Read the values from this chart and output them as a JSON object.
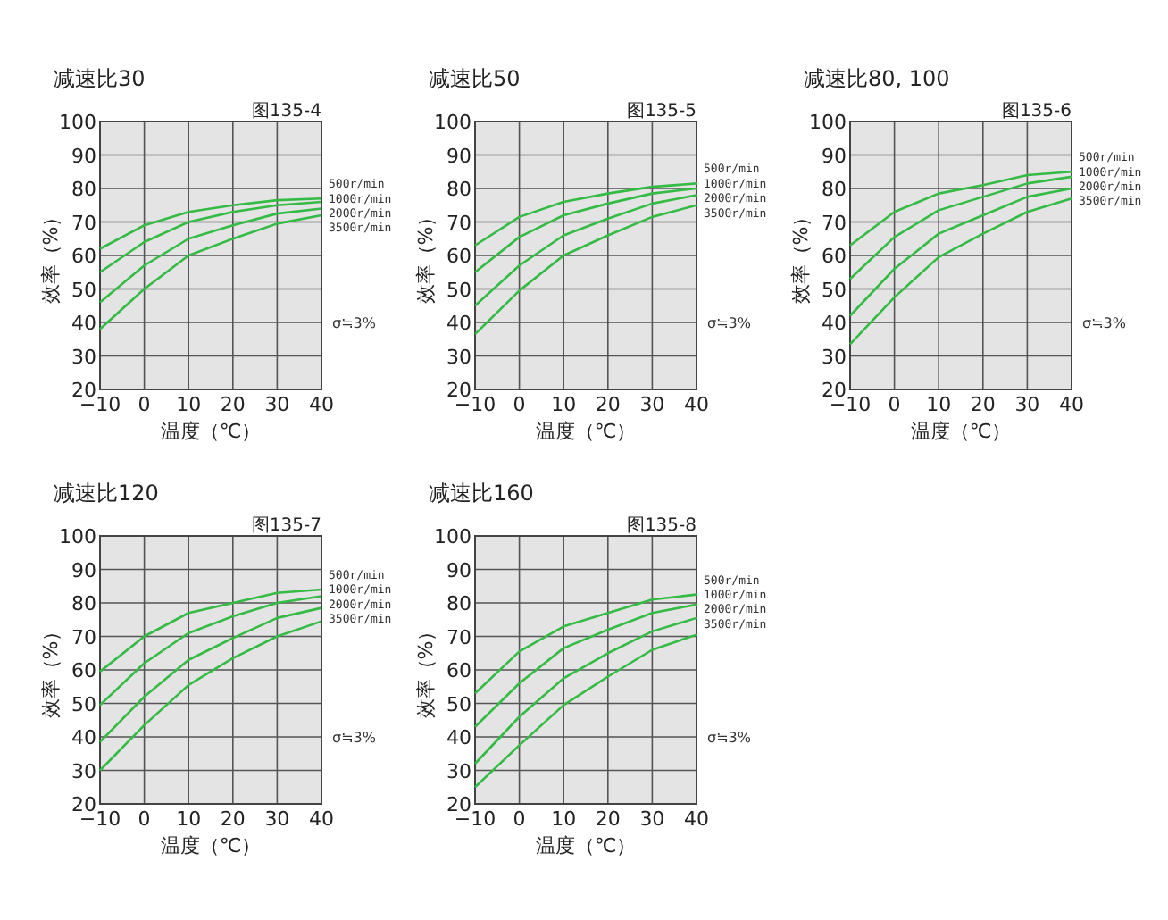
{
  "chart_data": [
    {
      "type": "line",
      "title": "减速比30",
      "xlabel": "温度（℃）",
      "ylabel": "效率（%）",
      "annotations": [
        "图135-4",
        "σ≒3%"
      ],
      "x": [
        -10,
        0,
        10,
        20,
        30,
        40
      ],
      "xlim": [
        -10,
        40
      ],
      "xticks": [
        -10,
        0,
        10,
        20,
        30,
        40
      ],
      "ylim": [
        20,
        100
      ],
      "yticks": [
        20,
        30,
        40,
        50,
        60,
        70,
        80,
        90,
        100
      ],
      "grid": true,
      "legend": false,
      "series": [
        {
          "name": "500r/min",
          "color": "#33bb44",
          "values": [
            62,
            69,
            73,
            75,
            76.5,
            77
          ]
        },
        {
          "name": "1000r/min",
          "color": "#33bb44",
          "values": [
            55,
            64,
            70,
            73,
            75,
            76
          ]
        },
        {
          "name": "2000r/min",
          "color": "#33bb44",
          "values": [
            46,
            57,
            65,
            69,
            72.5,
            74
          ]
        },
        {
          "name": "3500r/min",
          "color": "#33bb44",
          "values": [
            38,
            50,
            60,
            65,
            69.5,
            72
          ]
        }
      ]
    },
    {
      "type": "line",
      "title": "减速比50",
      "xlabel": "温度（℃）",
      "ylabel": "效率（%）",
      "annotations": [
        "图135-5",
        "σ≒3%"
      ],
      "x": [
        -10,
        0,
        10,
        20,
        30,
        40
      ],
      "xlim": [
        -10,
        40
      ],
      "xticks": [
        -10,
        0,
        10,
        20,
        30,
        40
      ],
      "ylim": [
        20,
        100
      ],
      "yticks": [
        20,
        30,
        40,
        50,
        60,
        70,
        80,
        90,
        100
      ],
      "grid": true,
      "legend": false,
      "series": [
        {
          "name": "500r/min",
          "color": "#33bb44",
          "values": [
            63,
            71.5,
            76,
            78.5,
            80.5,
            81.5
          ]
        },
        {
          "name": "1000r/min",
          "color": "#33bb44",
          "values": [
            55,
            65.5,
            72,
            75.5,
            78.5,
            80
          ]
        },
        {
          "name": "2000r/min",
          "color": "#33bb44",
          "values": [
            45,
            57,
            66,
            71,
            75.5,
            78
          ]
        },
        {
          "name": "3500r/min",
          "color": "#33bb44",
          "values": [
            36.5,
            49.5,
            60,
            66,
            71.5,
            75
          ]
        }
      ]
    },
    {
      "type": "line",
      "title": "减速比80, 100",
      "xlabel": "温度（℃）",
      "ylabel": "效率（%）",
      "annotations": [
        "图135-6",
        "σ≒3%"
      ],
      "x": [
        -10,
        0,
        10,
        20,
        30,
        40
      ],
      "xlim": [
        -10,
        40
      ],
      "xticks": [
        -10,
        0,
        10,
        20,
        30,
        40
      ],
      "ylim": [
        20,
        100
      ],
      "yticks": [
        20,
        30,
        40,
        50,
        60,
        70,
        80,
        90,
        100
      ],
      "grid": true,
      "legend": false,
      "series": [
        {
          "name": "500r/min",
          "color": "#33bb44",
          "values": [
            63,
            73,
            78.5,
            81,
            84,
            85
          ]
        },
        {
          "name": "1000r/min",
          "color": "#33bb44",
          "values": [
            53,
            65.5,
            73.5,
            77.5,
            81.5,
            83.5
          ]
        },
        {
          "name": "2000r/min",
          "color": "#33bb44",
          "values": [
            42,
            56,
            66.5,
            72,
            77.5,
            80
          ]
        },
        {
          "name": "3500r/min",
          "color": "#33bb44",
          "values": [
            33.5,
            47.5,
            59.5,
            66.5,
            73,
            77
          ]
        }
      ]
    },
    {
      "type": "line",
      "title": "减速比120",
      "xlabel": "温度（℃）",
      "ylabel": "效率（%）",
      "annotations": [
        "图135-7",
        "σ≒3%"
      ],
      "x": [
        -10,
        0,
        10,
        20,
        30,
        40
      ],
      "xlim": [
        -10,
        40
      ],
      "xticks": [
        -10,
        0,
        10,
        20,
        30,
        40
      ],
      "ylim": [
        20,
        100
      ],
      "yticks": [
        20,
        30,
        40,
        50,
        60,
        70,
        80,
        90,
        100
      ],
      "grid": true,
      "legend": false,
      "series": [
        {
          "name": "500r/min",
          "color": "#33bb44",
          "values": [
            59.5,
            70,
            77,
            80,
            83,
            84
          ]
        },
        {
          "name": "1000r/min",
          "color": "#33bb44",
          "values": [
            49.5,
            62,
            71,
            76,
            80,
            82
          ]
        },
        {
          "name": "2000r/min",
          "color": "#33bb44",
          "values": [
            38.5,
            52,
            63,
            69.5,
            75.5,
            78.5
          ]
        },
        {
          "name": "3500r/min",
          "color": "#33bb44",
          "values": [
            30,
            43.5,
            55.5,
            63.5,
            70,
            74.5
          ]
        }
      ]
    },
    {
      "type": "line",
      "title": "减速比160",
      "xlabel": "温度（℃）",
      "ylabel": "效率（%）",
      "annotations": [
        "图135-8",
        "σ≒3%"
      ],
      "x": [
        -10,
        0,
        10,
        20,
        30,
        40
      ],
      "xlim": [
        -10,
        40
      ],
      "xticks": [
        -10,
        0,
        10,
        20,
        30,
        40
      ],
      "ylim": [
        20,
        100
      ],
      "yticks": [
        20,
        30,
        40,
        50,
        60,
        70,
        80,
        90,
        100
      ],
      "grid": true,
      "legend": false,
      "series": [
        {
          "name": "500r/min",
          "color": "#33bb44",
          "values": [
            53,
            65.5,
            73,
            77,
            81,
            82.5
          ]
        },
        {
          "name": "1000r/min",
          "color": "#33bb44",
          "values": [
            43,
            56,
            66.5,
            72,
            77,
            79.5
          ]
        },
        {
          "name": "2000r/min",
          "color": "#33bb44",
          "values": [
            32,
            46,
            57.5,
            65,
            71.5,
            75.5
          ]
        },
        {
          "name": "3500r/min",
          "color": "#33bb44",
          "values": [
            25,
            37.5,
            49.5,
            58,
            66,
            70.5
          ]
        }
      ]
    }
  ]
}
